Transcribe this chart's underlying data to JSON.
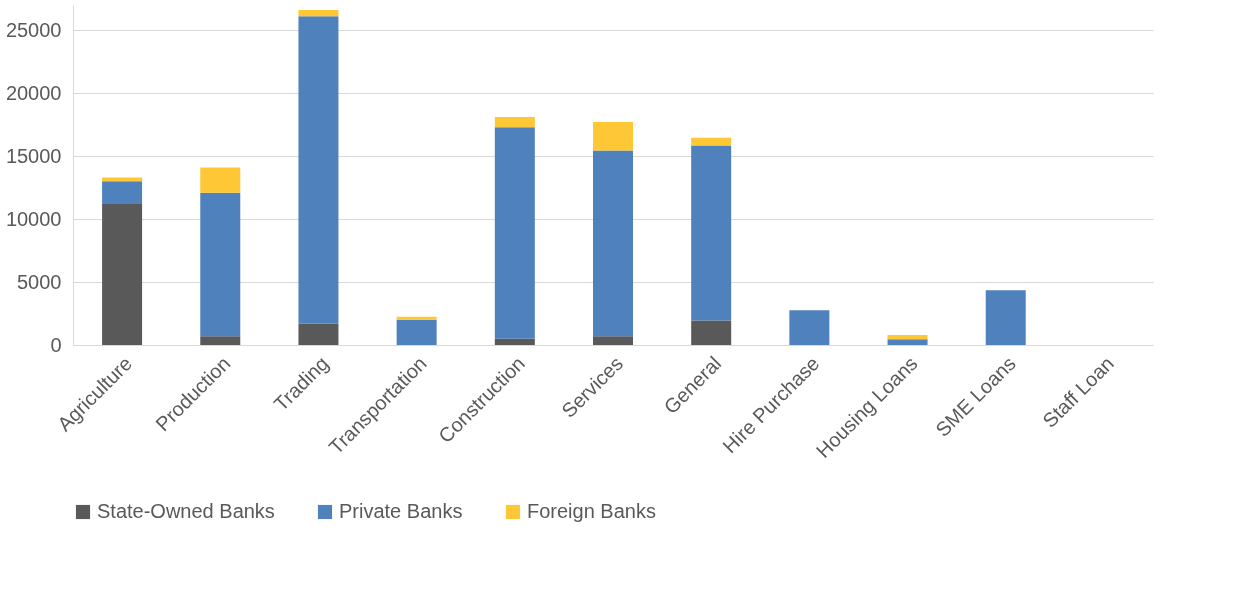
{
  "chart_data": {
    "type": "bar",
    "stacked": true,
    "categories": [
      "Agriculture",
      "Production",
      "Trading",
      "Transportation",
      "Construction",
      "Services",
      "General",
      "Hire Purchase",
      "Housing Loans",
      "SME Loans",
      "Staff Loan"
    ],
    "series": [
      {
        "name": "State-Owned Banks",
        "color": "#595959",
        "values": [
          11200,
          700,
          1700,
          0,
          500,
          700,
          1950,
          0,
          0,
          0,
          0
        ]
      },
      {
        "name": "Private Banks",
        "color": "#4f81bd",
        "values": [
          1800,
          11400,
          24400,
          2000,
          16800,
          14750,
          13900,
          2750,
          450,
          4350,
          0
        ]
      },
      {
        "name": "Foreign Banks",
        "color": "#fdc735",
        "values": [
          300,
          2000,
          500,
          250,
          800,
          2250,
          600,
          0,
          350,
          0,
          0
        ]
      }
    ],
    "ylim": [
      0,
      27000
    ],
    "yticks": [
      0,
      5000,
      10000,
      15000,
      20000,
      25000
    ],
    "grid": "y",
    "legend": "bottom"
  }
}
